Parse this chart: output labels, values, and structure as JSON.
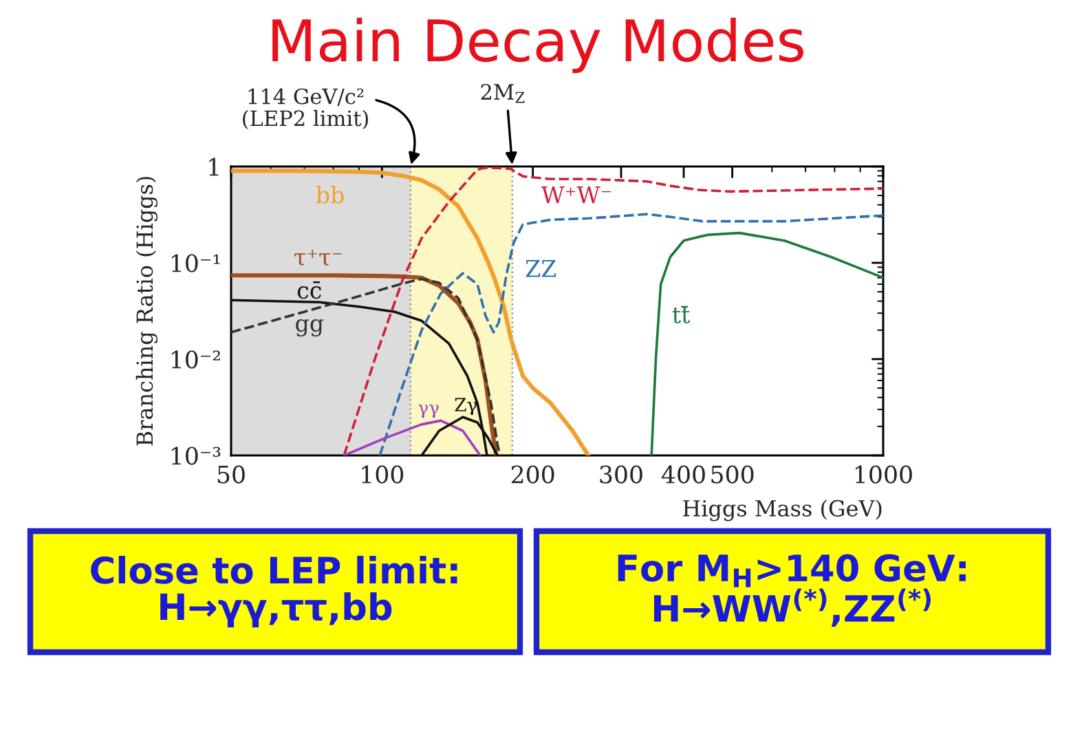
{
  "chart_data": {
    "type": "line",
    "title": "Main Decay Modes",
    "xlabel": "Higgs Mass (GeV)",
    "ylabel": "Branching Ratio (Higgs)",
    "log": "xy",
    "xlim": [
      50,
      1000
    ],
    "ylim": [
      0.001,
      1
    ],
    "xticks": [
      50,
      100,
      200,
      300,
      400,
      500,
      1000
    ],
    "yticks": [
      {
        "value": 0.001,
        "label": "10⁻³"
      },
      {
        "value": 0.01,
        "label": "10⁻²"
      },
      {
        "value": 0.1,
        "label": "10⁻¹"
      },
      1
    ],
    "series": [
      {
        "name": "bb",
        "color": "#f0a030",
        "x": [
          50,
          70,
          90,
          100,
          110,
          120,
          130,
          142,
          155,
          163,
          168,
          175,
          181,
          191,
          200,
          217,
          240,
          258
        ],
        "values": [
          0.9,
          0.9,
          0.88,
          0.86,
          0.8,
          0.72,
          0.58,
          0.385,
          0.18,
          0.1,
          0.067,
          0.035,
          0.016,
          0.0067,
          0.005,
          0.0035,
          0.0018,
          0.001
        ]
      },
      {
        "name": "τ⁺τ⁻",
        "color": "#a0501e",
        "x": [
          50,
          80,
          100,
          110,
          120,
          130,
          142,
          150,
          155,
          161,
          166,
          169
        ],
        "values": [
          0.074,
          0.074,
          0.073,
          0.072,
          0.07,
          0.058,
          0.038,
          0.024,
          0.016,
          0.0059,
          0.0018,
          0.001
        ]
      },
      {
        "name": "cc̄",
        "color": "#111111",
        "x": [
          50,
          75,
          90,
          106,
          120,
          136,
          148,
          155,
          159,
          162
        ],
        "values": [
          0.041,
          0.039,
          0.035,
          0.031,
          0.025,
          0.0145,
          0.0067,
          0.0035,
          0.0018,
          0.001
        ]
      },
      {
        "name": "gg",
        "color": "#333333",
        "line_style": "dashed",
        "x": [
          50,
          70,
          90,
          110,
          120,
          130,
          142,
          155,
          165,
          170,
          172
        ],
        "values": [
          0.019,
          0.031,
          0.045,
          0.061,
          0.068,
          0.062,
          0.043,
          0.016,
          0.0035,
          0.0013,
          0.001
        ]
      },
      {
        "name": "W⁺W⁻",
        "color": "#d0203a",
        "line_style": "dashed",
        "x": [
          84,
          97,
          110,
          120,
          136,
          155,
          161,
          175,
          181,
          191,
          217,
          260,
          338,
          376,
          430,
          494,
          600,
          705,
          850,
          1000
        ],
        "values": [
          0.001,
          0.0104,
          0.067,
          0.18,
          0.43,
          0.93,
          0.97,
          0.96,
          0.94,
          0.79,
          0.74,
          0.74,
          0.7,
          0.63,
          0.57,
          0.55,
          0.56,
          0.57,
          0.58,
          0.59
        ]
      },
      {
        "name": "ZZ",
        "color": "#3070b0",
        "line_style": "dashed",
        "x": [
          99,
          110,
          120,
          131,
          145,
          155,
          161,
          167,
          171,
          177,
          183,
          191,
          217,
          260,
          338,
          376,
          436,
          635,
          800,
          1000
        ],
        "values": [
          0.001,
          0.0053,
          0.02,
          0.048,
          0.078,
          0.06,
          0.028,
          0.019,
          0.024,
          0.074,
          0.16,
          0.25,
          0.28,
          0.29,
          0.32,
          0.3,
          0.27,
          0.27,
          0.29,
          0.31
        ]
      },
      {
        "name": "tt̄",
        "color": "#1e7a3c",
        "x": [
          345,
          352,
          360,
          376,
          400,
          446,
          517,
          635,
          787,
          1000
        ],
        "values": [
          0.001,
          0.0104,
          0.06,
          0.115,
          0.17,
          0.195,
          0.204,
          0.17,
          0.115,
          0.07
        ]
      },
      {
        "name": "γγ",
        "color": "#a040c0",
        "x": [
          84,
          101,
          120,
          131,
          145,
          155,
          157
        ],
        "values": [
          0.001,
          0.0015,
          0.0021,
          0.0023,
          0.0018,
          0.0011,
          0.001
        ]
      },
      {
        "name": "Zγ",
        "color": "#111111",
        "x": [
          120,
          130,
          145,
          155,
          163,
          170
        ],
        "values": [
          0.001,
          0.0018,
          0.0025,
          0.0022,
          0.0015,
          0.001
        ]
      }
    ],
    "bands": [
      {
        "axis": "x",
        "from": 50,
        "to": 114,
        "color": "#dcdcdc"
      },
      {
        "axis": "x",
        "from": 114,
        "to": 182,
        "color": "#fdf7c3"
      }
    ],
    "ref_lines": [
      {
        "axis": "x",
        "value": 114,
        "label": "114 GeV/c²\n(LEP2 limit)",
        "color": "#999999",
        "line_style": "dotted"
      },
      {
        "axis": "x",
        "value": 182,
        "label": "2M$_{Z}$",
        "color": "#999999",
        "line_style": "dotted"
      }
    ],
    "annotations": [
      "Close to LEP limit:\nH→γγ,ττ,bb",
      "For M$_{H}$>140 GeV:\nH→WW$^{(*)}$,ZZ$^{(*)}$"
    ]
  }
}
